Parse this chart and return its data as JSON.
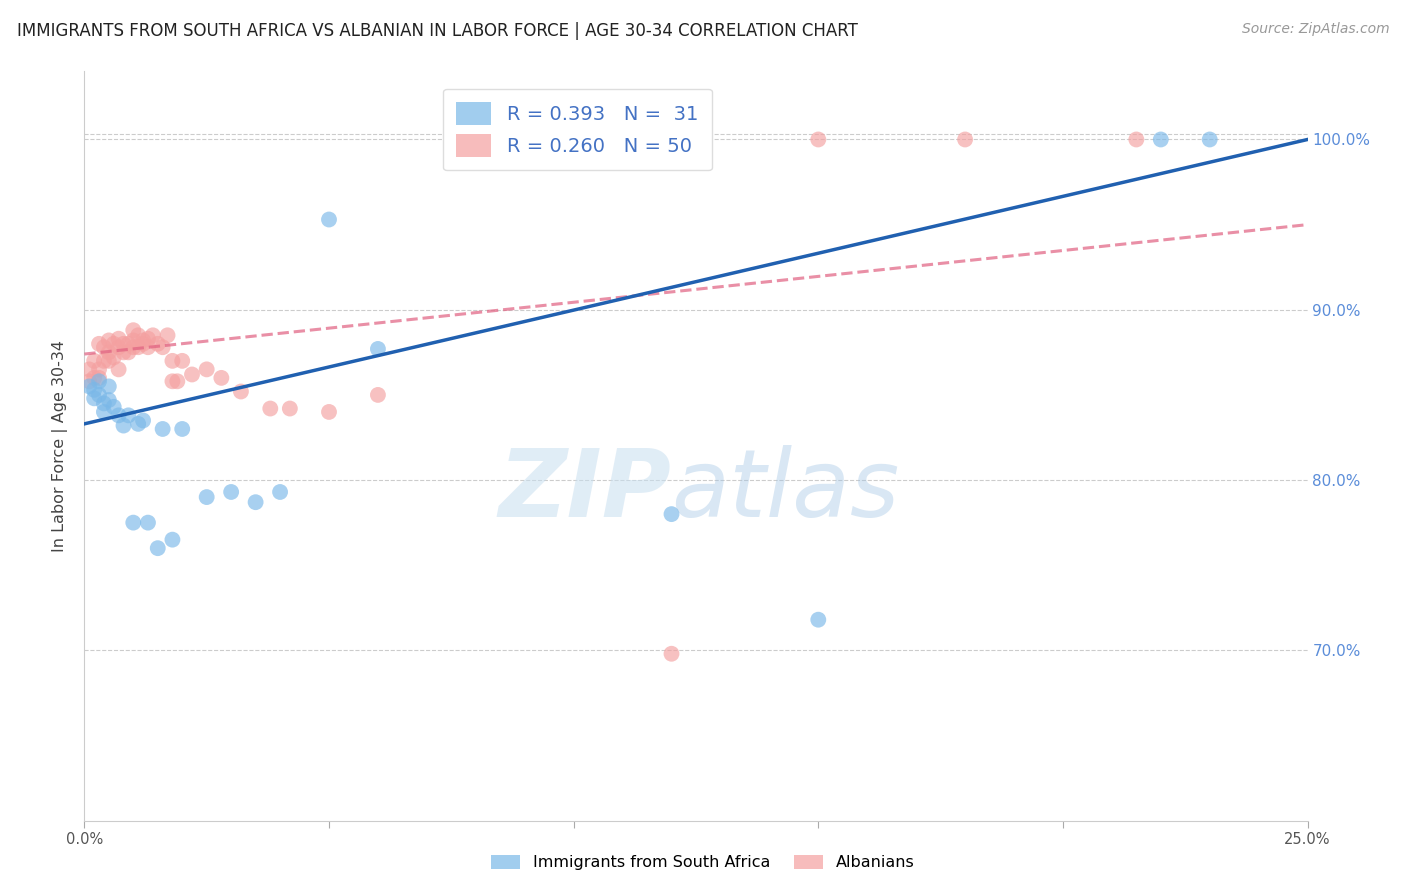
{
  "title": "IMMIGRANTS FROM SOUTH AFRICA VS ALBANIAN IN LABOR FORCE | AGE 30-34 CORRELATION CHART",
  "source": "Source: ZipAtlas.com",
  "ylabel": "In Labor Force | Age 30-34",
  "xlim": [
    0.0,
    0.25
  ],
  "ylim": [
    0.6,
    1.04
  ],
  "yticks": [
    0.7,
    0.8,
    0.9,
    1.0
  ],
  "ytick_labels": [
    "70.0%",
    "80.0%",
    "90.0%",
    "100.0%"
  ],
  "south_africa_color": "#7ab8e8",
  "albanian_color": "#f4a0a0",
  "south_africa_line_color": "#2060b0",
  "albanian_line_color": "#e06080",
  "background_color": "#ffffff",
  "sa_R": 0.393,
  "al_R": 0.26,
  "sa_N": 31,
  "al_N": 50,
  "south_africa_x": [
    0.001,
    0.002,
    0.002,
    0.003,
    0.003,
    0.004,
    0.004,
    0.005,
    0.005,
    0.006,
    0.007,
    0.008,
    0.009,
    0.01,
    0.011,
    0.012,
    0.013,
    0.015,
    0.016,
    0.018,
    0.02,
    0.025,
    0.03,
    0.035,
    0.04,
    0.05,
    0.06,
    0.12,
    0.15,
    0.22,
    0.23
  ],
  "south_africa_y": [
    0.855,
    0.853,
    0.848,
    0.858,
    0.85,
    0.845,
    0.84,
    0.847,
    0.855,
    0.843,
    0.838,
    0.832,
    0.838,
    0.775,
    0.833,
    0.835,
    0.775,
    0.76,
    0.83,
    0.765,
    0.83,
    0.79,
    0.793,
    0.787,
    0.793,
    0.953,
    0.877,
    0.78,
    0.718,
    1.0,
    1.0
  ],
  "albanian_x": [
    0.001,
    0.001,
    0.002,
    0.002,
    0.003,
    0.003,
    0.003,
    0.004,
    0.004,
    0.005,
    0.005,
    0.005,
    0.006,
    0.006,
    0.007,
    0.007,
    0.007,
    0.008,
    0.008,
    0.009,
    0.009,
    0.01,
    0.01,
    0.01,
    0.011,
    0.011,
    0.012,
    0.012,
    0.013,
    0.013,
    0.014,
    0.015,
    0.016,
    0.017,
    0.018,
    0.018,
    0.019,
    0.02,
    0.022,
    0.025,
    0.028,
    0.032,
    0.038,
    0.042,
    0.05,
    0.06,
    0.12,
    0.15,
    0.18,
    0.215
  ],
  "albanian_y": [
    0.858,
    0.865,
    0.86,
    0.87,
    0.86,
    0.865,
    0.88,
    0.87,
    0.878,
    0.875,
    0.87,
    0.882,
    0.872,
    0.88,
    0.865,
    0.878,
    0.883,
    0.875,
    0.88,
    0.875,
    0.88,
    0.888,
    0.878,
    0.882,
    0.878,
    0.885,
    0.882,
    0.88,
    0.883,
    0.878,
    0.885,
    0.88,
    0.878,
    0.885,
    0.858,
    0.87,
    0.858,
    0.87,
    0.862,
    0.865,
    0.86,
    0.852,
    0.842,
    0.842,
    0.84,
    0.85,
    0.698,
    1.0,
    1.0,
    1.0
  ]
}
